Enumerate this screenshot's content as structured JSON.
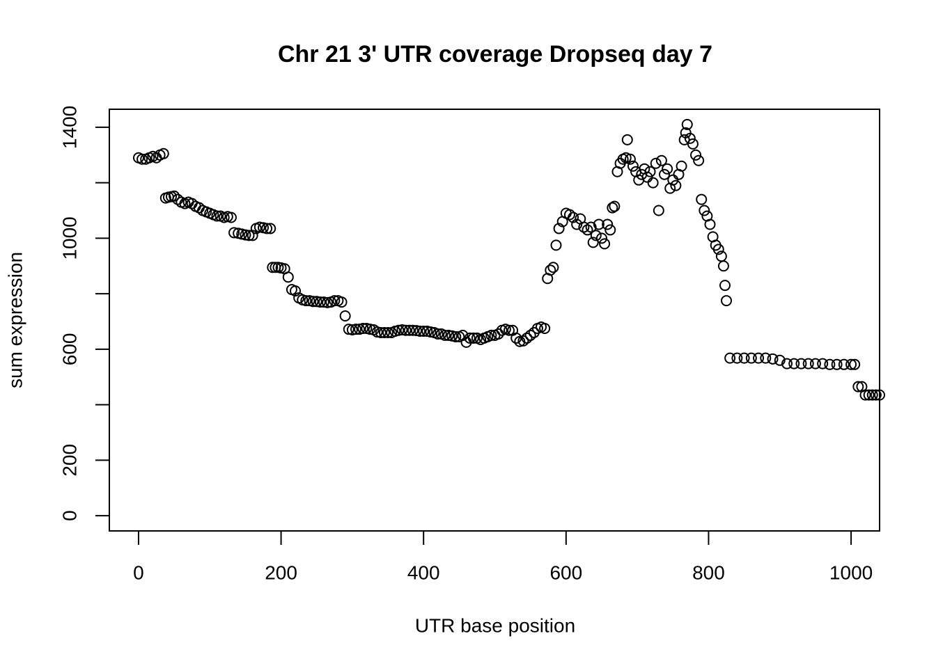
{
  "chart_data": {
    "type": "scatter",
    "title": "Chr 21 3' UTR coverage Dropseq day 7",
    "x_label": "UTR base position",
    "y_label": "sum expression",
    "xlim": [
      -41,
      1040
    ],
    "ylim": [
      -55,
      1465
    ],
    "xticks": [
      0,
      200,
      400,
      600,
      800,
      1000
    ],
    "yticks": [
      0,
      200,
      {
        "value": 400
      },
      600,
      {
        "value": 800
      },
      1000,
      {
        "value": 1200
      },
      1400
    ],
    "color": "#000000",
    "x": [
      0,
      5,
      10,
      15,
      20,
      25,
      30,
      35,
      38,
      42,
      46,
      50,
      55,
      60,
      65,
      70,
      75,
      80,
      85,
      90,
      95,
      100,
      105,
      110,
      115,
      120,
      125,
      130,
      134,
      140,
      145,
      150,
      155,
      160,
      165,
      170,
      175,
      180,
      185,
      188,
      192,
      196,
      200,
      205,
      210,
      215,
      220,
      225,
      230,
      235,
      240,
      245,
      250,
      255,
      260,
      265,
      270,
      275,
      280,
      285,
      290,
      295,
      300,
      305,
      310,
      315,
      320,
      325,
      330,
      335,
      340,
      345,
      350,
      355,
      360,
      365,
      370,
      375,
      380,
      385,
      390,
      395,
      400,
      405,
      410,
      415,
      420,
      425,
      430,
      435,
      440,
      445,
      450,
      455,
      460,
      465,
      470,
      475,
      480,
      485,
      490,
      495,
      500,
      505,
      510,
      515,
      520,
      525,
      530,
      535,
      540,
      545,
      550,
      555,
      560,
      565,
      570,
      574,
      578,
      582,
      586,
      590,
      595,
      600,
      605,
      610,
      615,
      620,
      625,
      630,
      635,
      638,
      642,
      646,
      650,
      654,
      658,
      662,
      665,
      668,
      672,
      676,
      680,
      684,
      686,
      690,
      694,
      698,
      702,
      706,
      710,
      714,
      718,
      722,
      726,
      730,
      734,
      738,
      742,
      746,
      750,
      754,
      758,
      762,
      766,
      768,
      770,
      774,
      778,
      782,
      786,
      790,
      794,
      798,
      802,
      806,
      810,
      814,
      818,
      821,
      823,
      825,
      830,
      840,
      850,
      860,
      870,
      880,
      890,
      900,
      910,
      920,
      930,
      940,
      950,
      960,
      970,
      980,
      990,
      1000,
      1005,
      1010,
      1015,
      1020,
      1025,
      1030,
      1035,
      1040
    ],
    "values": [
      1290,
      1285,
      1285,
      1290,
      1295,
      1290,
      1300,
      1305,
      1145,
      1148,
      1150,
      1152,
      1140,
      1130,
      1125,
      1130,
      1125,
      1115,
      1110,
      1100,
      1095,
      1090,
      1085,
      1080,
      1080,
      1075,
      1078,
      1075,
      1020,
      1018,
      1015,
      1012,
      1010,
      1010,
      1035,
      1040,
      1038,
      1035,
      1035,
      895,
      895,
      895,
      893,
      890,
      860,
      815,
      810,
      785,
      778,
      775,
      775,
      772,
      772,
      770,
      770,
      768,
      770,
      775,
      775,
      770,
      720,
      672,
      670,
      672,
      672,
      675,
      675,
      672,
      670,
      662,
      660,
      660,
      660,
      660,
      665,
      668,
      670,
      668,
      668,
      668,
      667,
      665,
      665,
      665,
      662,
      660,
      655,
      655,
      650,
      650,
      648,
      645,
      645,
      650,
      625,
      640,
      640,
      640,
      635,
      640,
      645,
      650,
      650,
      655,
      668,
      672,
      668,
      668,
      640,
      628,
      630,
      640,
      650,
      660,
      675,
      680,
      675,
      855,
      885,
      895,
      975,
      1035,
      1060,
      1090,
      1085,
      1075,
      1050,
      1070,
      1040,
      1030,
      1040,
      985,
      1010,
      1050,
      1000,
      980,
      1050,
      1030,
      1110,
      1115,
      1240,
      1270,
      1285,
      1290,
      1355,
      1285,
      1260,
      1240,
      1210,
      1230,
      1250,
      1220,
      1240,
      1200,
      1270,
      1100,
      1280,
      1230,
      1250,
      1180,
      1210,
      1190,
      1230,
      1260,
      1355,
      1380,
      1410,
      1360,
      1340,
      1300,
      1280,
      1140,
      1100,
      1080,
      1050,
      1005,
      975,
      960,
      935,
      900,
      830,
      775,
      568,
      568,
      568,
      568,
      568,
      568,
      565,
      560,
      548,
      548,
      548,
      548,
      548,
      548,
      545,
      545,
      545,
      545,
      545,
      465,
      465,
      435,
      435,
      435,
      435,
      435
    ]
  }
}
